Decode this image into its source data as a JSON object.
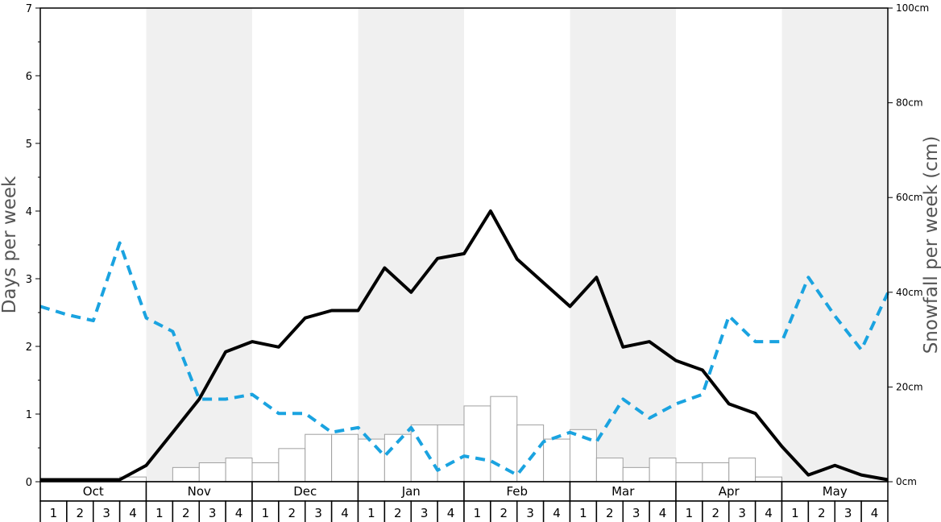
{
  "chart_data": {
    "type": "bar+line",
    "months": [
      "Oct",
      "Nov",
      "Dec",
      "Jan",
      "Feb",
      "Mar",
      "Apr",
      "May"
    ],
    "weeks": [
      "1",
      "2",
      "3",
      "4"
    ],
    "yleft": {
      "label": "Days per week",
      "lim": [
        0,
        7
      ],
      "ticks": [
        "0",
        "1",
        "2",
        "3",
        "4",
        "5",
        "6",
        "7"
      ]
    },
    "yright": {
      "label": "Snowfall per week (cm)",
      "lim": [
        0,
        100
      ],
      "ticks": [
        "0cm",
        "20cm",
        "40cm",
        "60cm",
        "80cm",
        "100cm"
      ]
    },
    "snowfall_cm": [
      0,
      0,
      0,
      1,
      0,
      3,
      4,
      5,
      4,
      7,
      10,
      10,
      9,
      10,
      12,
      12,
      16,
      18,
      12,
      9,
      11,
      5,
      3,
      5,
      4,
      4,
      5,
      1,
      0,
      0,
      0,
      0
    ],
    "days_black": [
      0.03,
      0.03,
      0.03,
      0.03,
      0.24,
      0.73,
      1.22,
      1.92,
      2.07,
      1.99,
      2.42,
      2.53,
      2.53,
      3.16,
      2.8,
      3.3,
      3.37,
      4.0,
      3.29,
      2.94,
      2.59,
      3.02,
      1.99,
      2.07,
      1.79,
      1.65,
      1.15,
      1.01,
      0.52,
      0.1,
      0.24,
      0.1,
      0.03
    ],
    "days_blue_dashed": [
      2.59,
      2.47,
      2.38,
      3.53,
      2.42,
      2.22,
      1.22,
      1.22,
      1.29,
      1.01,
      1.01,
      0.73,
      0.8,
      0.38,
      0.8,
      0.17,
      0.38,
      0.31,
      0.1,
      0.59,
      0.73,
      0.59,
      1.22,
      0.94,
      1.15,
      1.29,
      2.45,
      2.07,
      2.07,
      3.02,
      2.45,
      1.95,
      2.79
    ],
    "colors": {
      "black_line": "#000000",
      "blue_line": "#1aa3e0",
      "shade": "#f0f0f0",
      "bar_fill": "#ffffff",
      "bar_stroke": "#a0a0a0"
    },
    "grid": false
  }
}
